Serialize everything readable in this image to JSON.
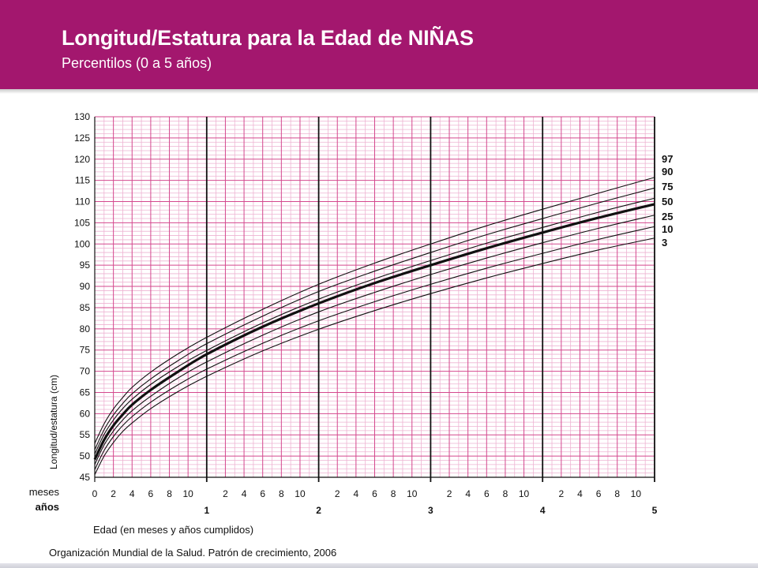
{
  "header": {
    "title": "Longitud/Estatura para la Edad de NIÑAS",
    "subtitle": "Percentilos (0 a 5 años)"
  },
  "colors": {
    "header_bg": "#a3176e",
    "grid_major": "#d4488e",
    "grid_minor": "#eeb3d2",
    "curve": "#111111"
  },
  "chart_data": {
    "type": "line",
    "ylabel": "Longitud/estatura (cm)",
    "xlabel": "Edad (en meses y años cumplidos)",
    "row_labels": {
      "months": "meses",
      "years": "años"
    },
    "x_unit": "months",
    "xlim": [
      0,
      60
    ],
    "ylim": [
      45,
      130
    ],
    "y_ticks": [
      45,
      50,
      55,
      60,
      65,
      70,
      75,
      80,
      85,
      90,
      95,
      100,
      105,
      110,
      115,
      120,
      125,
      130
    ],
    "month_tick_labels": [
      "0",
      "2",
      "4",
      "6",
      "8",
      "10"
    ],
    "year_tick_labels": [
      "1",
      "2",
      "3",
      "4",
      "5"
    ],
    "grid": true,
    "x": [
      0,
      1,
      2,
      3,
      4,
      6,
      9,
      12,
      18,
      24,
      30,
      36,
      42,
      48,
      54,
      60
    ],
    "series": [
      {
        "name": "97",
        "bold": false,
        "values": [
          53.0,
          57.6,
          61.1,
          63.8,
          66.2,
          69.8,
          74.2,
          78.0,
          84.6,
          90.5,
          95.5,
          100.0,
          104.3,
          108.2,
          112.0,
          115.7
        ]
      },
      {
        "name": "90",
        "bold": false,
        "values": [
          51.5,
          56.2,
          59.7,
          62.4,
          64.7,
          68.2,
          72.6,
          76.5,
          83.0,
          88.8,
          93.6,
          98.0,
          102.2,
          106.0,
          109.7,
          113.2
        ]
      },
      {
        "name": "75",
        "bold": false,
        "values": [
          50.5,
          55.1,
          58.5,
          61.2,
          63.4,
          66.9,
          71.2,
          74.9,
          81.4,
          87.0,
          91.8,
          96.1,
          100.2,
          103.9,
          107.5,
          110.8
        ]
      },
      {
        "name": "50",
        "bold": true,
        "values": [
          49.2,
          53.8,
          57.2,
          59.8,
          62.1,
          65.6,
          70.0,
          74.0,
          80.5,
          86.0,
          90.8,
          95.0,
          99.0,
          102.7,
          106.2,
          109.4
        ]
      },
      {
        "name": "25",
        "bold": false,
        "values": [
          48.0,
          52.6,
          55.9,
          58.5,
          60.7,
          64.1,
          68.5,
          72.2,
          78.5,
          84.0,
          88.6,
          92.8,
          96.7,
          100.3,
          103.7,
          106.8
        ]
      },
      {
        "name": "10",
        "bold": false,
        "values": [
          46.8,
          51.3,
          54.6,
          57.2,
          59.3,
          62.7,
          66.9,
          70.5,
          76.6,
          81.9,
          86.4,
          90.5,
          94.3,
          97.8,
          101.1,
          104.1
        ]
      },
      {
        "name": "3",
        "bold": false,
        "values": [
          45.6,
          50.0,
          53.2,
          55.8,
          57.8,
          61.2,
          65.3,
          68.8,
          74.8,
          79.9,
          84.3,
          88.3,
          92.0,
          95.4,
          98.6,
          101.4
        ]
      }
    ],
    "legend": "right-end-labels"
  },
  "footer": {
    "source": "Organización Mundial de la Salud. Patrón de crecimiento, 2006"
  }
}
